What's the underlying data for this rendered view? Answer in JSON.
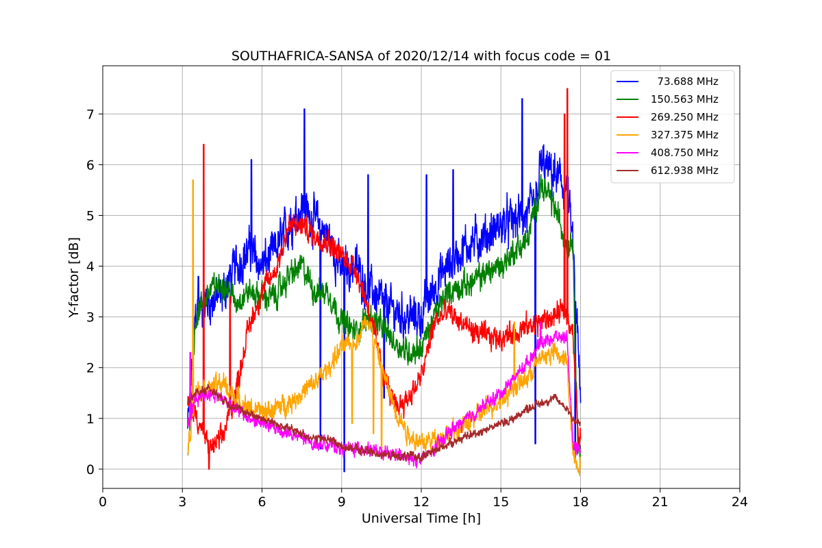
{
  "chart_data": {
    "type": "line",
    "title": "SOUTHAFRICA-SANSA of 2020/12/14 with focus code = 01",
    "xlabel": "Universal Time [h]",
    "ylabel": "Y-factor [dB]",
    "xlim": [
      0,
      24
    ],
    "ylim": [
      -0.38,
      7.95
    ],
    "xticks": [
      0,
      3,
      6,
      9,
      12,
      15,
      18,
      21,
      24
    ],
    "xtick_labels": [
      "0",
      "3",
      "6",
      "9",
      "12",
      "15",
      "18",
      "21",
      "24"
    ],
    "yticks": [
      0,
      1,
      2,
      3,
      4,
      5,
      6,
      7
    ],
    "ytick_labels": [
      "0",
      "1",
      "2",
      "3",
      "4",
      "5",
      "6",
      "7"
    ],
    "grid": true,
    "legend_position": "top-right",
    "series": [
      {
        "name": "  73.688 MHz",
        "color": "#0000ff",
        "noise": 0.45,
        "x": [
          3.2,
          3.5,
          4.0,
          4.5,
          5.0,
          5.5,
          6.0,
          6.5,
          7.0,
          7.5,
          8.0,
          8.5,
          9.0,
          9.5,
          10.0,
          10.5,
          11.0,
          11.5,
          12.0,
          12.5,
          13.0,
          13.5,
          14.0,
          14.5,
          15.0,
          15.5,
          16.0,
          16.3,
          16.5,
          17.0,
          17.5,
          17.7,
          17.9,
          18.0
        ],
        "y": [
          0.8,
          3.1,
          3.3,
          3.4,
          4.0,
          4.3,
          4.0,
          4.3,
          4.8,
          5.2,
          4.9,
          4.6,
          3.9,
          4.0,
          3.6,
          3.3,
          3.1,
          3.0,
          3.0,
          3.6,
          4.0,
          4.3,
          4.5,
          4.6,
          4.8,
          4.9,
          5.0,
          5.2,
          6.0,
          5.8,
          5.5,
          4.5,
          2.5,
          1.2
        ],
        "spikes": [
          [
            3.6,
            3.8
          ],
          [
            5.6,
            6.1
          ],
          [
            7.6,
            7.1
          ],
          [
            8.2,
            0.4
          ],
          [
            9.1,
            -0.05
          ],
          [
            10.0,
            5.8
          ],
          [
            10.6,
            1.4
          ],
          [
            12.2,
            5.8
          ],
          [
            13.2,
            5.9
          ],
          [
            15.8,
            7.3
          ],
          [
            16.3,
            0.5
          ],
          [
            17.8,
            0.2
          ]
        ]
      },
      {
        "name": "150.563 MHz",
        "color": "#008000",
        "noise": 0.28,
        "x": [
          3.2,
          3.5,
          4.0,
          4.5,
          5.0,
          5.5,
          6.0,
          6.5,
          7.0,
          7.5,
          8.0,
          8.5,
          9.0,
          9.5,
          10.0,
          10.5,
          11.0,
          11.5,
          12.0,
          12.5,
          13.0,
          13.5,
          14.0,
          14.5,
          15.0,
          15.5,
          16.0,
          16.5,
          17.0,
          17.5,
          17.7,
          17.9,
          18.0
        ],
        "y": [
          0.2,
          3.0,
          3.5,
          3.7,
          3.3,
          3.5,
          3.4,
          3.4,
          3.8,
          4.0,
          3.5,
          3.5,
          2.9,
          2.7,
          3.0,
          2.8,
          2.5,
          2.3,
          2.4,
          3.0,
          3.5,
          3.6,
          3.7,
          3.9,
          4.0,
          4.3,
          4.5,
          5.6,
          5.2,
          4.4,
          4.6,
          0.5,
          0.3
        ],
        "spikes": []
      },
      {
        "name": "269.250 MHz",
        "color": "#ff0000",
        "noise": 0.25,
        "x": [
          3.2,
          3.5,
          4.0,
          4.5,
          5.0,
          5.5,
          6.0,
          6.5,
          7.0,
          7.5,
          8.0,
          8.5,
          9.0,
          9.5,
          10.0,
          10.5,
          11.0,
          11.5,
          12.0,
          12.5,
          13.0,
          13.5,
          14.0,
          14.5,
          15.0,
          15.5,
          16.0,
          16.5,
          17.0,
          17.3,
          17.5,
          17.7,
          17.9,
          18.0
        ],
        "y": [
          1.3,
          1.1,
          0.4,
          0.6,
          1.5,
          2.8,
          3.5,
          3.9,
          4.8,
          4.8,
          4.6,
          4.5,
          4.2,
          4.0,
          3.2,
          2.0,
          1.2,
          1.4,
          1.8,
          2.9,
          3.1,
          2.9,
          2.7,
          2.6,
          2.6,
          2.7,
          2.8,
          2.9,
          3.0,
          3.1,
          3.0,
          2.8,
          0.7,
          0.6
        ],
        "spikes": [
          [
            3.8,
            6.4
          ],
          [
            4.0,
            0.0
          ],
          [
            4.8,
            3.4
          ],
          [
            17.4,
            7.0
          ],
          [
            17.5,
            7.5
          ]
        ]
      },
      {
        "name": "327.375 MHz",
        "color": "#ffa500",
        "noise": 0.22,
        "x": [
          3.2,
          3.5,
          4.0,
          4.5,
          5.0,
          5.5,
          6.0,
          6.5,
          7.0,
          7.5,
          8.0,
          8.5,
          9.0,
          9.5,
          10.0,
          10.5,
          11.0,
          11.5,
          12.0,
          12.5,
          13.0,
          13.5,
          14.0,
          14.5,
          15.0,
          15.5,
          16.0,
          16.5,
          17.0,
          17.5,
          17.7,
          17.9,
          18.0
        ],
        "y": [
          0.3,
          1.6,
          1.6,
          1.7,
          1.4,
          1.2,
          1.1,
          1.2,
          1.3,
          1.5,
          1.7,
          2.0,
          2.4,
          2.5,
          3.0,
          2.0,
          1.2,
          0.7,
          0.5,
          0.6,
          0.7,
          0.8,
          1.0,
          1.2,
          1.4,
          1.6,
          1.8,
          2.2,
          2.3,
          2.1,
          0.4,
          0.1,
          0.1
        ],
        "spikes": [
          [
            3.4,
            5.7
          ],
          [
            9.4,
            0.9
          ],
          [
            10.2,
            0.7
          ],
          [
            10.5,
            0.2
          ],
          [
            15.5,
            2.9
          ]
        ]
      },
      {
        "name": "408.750 MHz",
        "color": "#ff00ff",
        "noise": 0.14,
        "x": [
          3.2,
          3.5,
          4.0,
          4.5,
          5.0,
          5.5,
          6.0,
          6.5,
          7.0,
          7.5,
          8.0,
          8.5,
          9.0,
          9.5,
          10.0,
          10.5,
          11.0,
          11.5,
          12.0,
          12.5,
          13.0,
          13.5,
          14.0,
          14.5,
          15.0,
          15.5,
          16.0,
          16.5,
          17.0,
          17.5,
          17.7,
          17.9,
          18.0
        ],
        "y": [
          0.8,
          1.4,
          1.5,
          1.4,
          1.2,
          1.0,
          0.9,
          0.8,
          0.7,
          0.6,
          0.5,
          0.5,
          0.4,
          0.4,
          0.4,
          0.3,
          0.3,
          0.2,
          0.2,
          0.4,
          0.7,
          0.9,
          1.1,
          1.3,
          1.5,
          1.8,
          2.1,
          2.5,
          2.6,
          2.6,
          0.5,
          0.4,
          0.4
        ],
        "spikes": [
          [
            3.3,
            2.3
          ],
          [
            16.5,
            2.9
          ]
        ]
      },
      {
        "name": "612.938 MHz",
        "color": "#a52a2a",
        "noise": 0.09,
        "x": [
          3.2,
          3.5,
          4.0,
          4.5,
          5.0,
          5.5,
          6.0,
          6.5,
          7.0,
          7.5,
          8.0,
          8.5,
          9.0,
          9.5,
          10.0,
          10.5,
          11.0,
          11.5,
          12.0,
          12.5,
          13.0,
          13.5,
          14.0,
          14.5,
          15.0,
          15.5,
          16.0,
          16.5,
          17.0,
          17.5,
          17.7,
          17.9,
          18.0
        ],
        "y": [
          1.3,
          1.5,
          1.6,
          1.4,
          1.2,
          1.1,
          1.0,
          0.9,
          0.8,
          0.7,
          0.6,
          0.6,
          0.45,
          0.4,
          0.35,
          0.3,
          0.25,
          0.25,
          0.25,
          0.35,
          0.5,
          0.6,
          0.7,
          0.8,
          0.9,
          1.0,
          1.2,
          1.3,
          1.4,
          1.2,
          1.0,
          0.9,
          0.9
        ],
        "spikes": []
      }
    ]
  }
}
